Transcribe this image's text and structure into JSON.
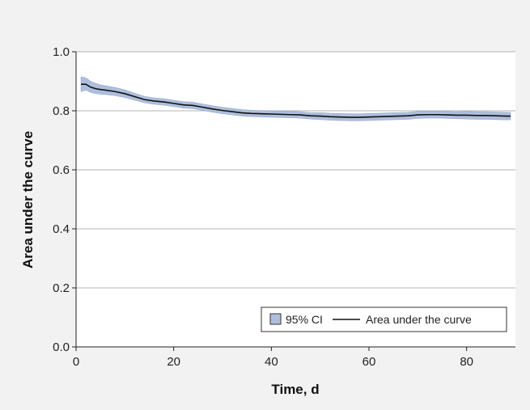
{
  "chart_data": {
    "type": "line",
    "title": "",
    "xlabel": "Time, d",
    "ylabel": "Area under the curve",
    "xlim": [
      0,
      90
    ],
    "ylim": [
      0,
      1.0
    ],
    "x_ticks": [
      0,
      20,
      40,
      60,
      80
    ],
    "y_ticks": [
      0.0,
      0.2,
      0.4,
      0.6,
      0.8,
      1.0
    ],
    "x_tick_labels": [
      "0",
      "20",
      "40",
      "60",
      "80"
    ],
    "y_tick_labels": [
      "0.0",
      "0.2",
      "0.4",
      "0.6",
      "0.8",
      "1.0"
    ],
    "grid": "horizontal",
    "legend_position": "bottom-right",
    "colors": {
      "line": "#111111",
      "band": "#aebfdd",
      "band_edge": "#7b93c2",
      "plot_bg": "#ffffff",
      "page_bg": "#f2f2f2",
      "grid": "#b4b4b4"
    },
    "series": [
      {
        "name": "Area under the curve",
        "kind": "line",
        "x": [
          1,
          2,
          3,
          4,
          5,
          6,
          8,
          10,
          12,
          14,
          16,
          18,
          20,
          22,
          24,
          26,
          28,
          30,
          32,
          34,
          36,
          38,
          40,
          42,
          44,
          46,
          48,
          50,
          52,
          54,
          56,
          58,
          60,
          62,
          64,
          66,
          68,
          70,
          72,
          74,
          76,
          78,
          80,
          82,
          84,
          86,
          88,
          89
        ],
        "y": [
          0.89,
          0.89,
          0.88,
          0.875,
          0.872,
          0.87,
          0.865,
          0.858,
          0.848,
          0.838,
          0.833,
          0.83,
          0.825,
          0.82,
          0.818,
          0.812,
          0.806,
          0.801,
          0.797,
          0.793,
          0.791,
          0.79,
          0.789,
          0.788,
          0.787,
          0.786,
          0.783,
          0.782,
          0.78,
          0.779,
          0.778,
          0.778,
          0.779,
          0.78,
          0.781,
          0.782,
          0.783,
          0.786,
          0.787,
          0.787,
          0.786,
          0.785,
          0.785,
          0.784,
          0.784,
          0.783,
          0.782,
          0.782
        ]
      },
      {
        "name": "95% CI",
        "kind": "band",
        "x": [
          1,
          2,
          3,
          4,
          5,
          6,
          8,
          10,
          12,
          14,
          16,
          18,
          20,
          22,
          24,
          26,
          28,
          30,
          32,
          34,
          36,
          38,
          40,
          42,
          44,
          46,
          48,
          50,
          52,
          54,
          56,
          58,
          60,
          62,
          64,
          66,
          68,
          70,
          72,
          74,
          76,
          78,
          80,
          82,
          84,
          86,
          88,
          89
        ],
        "lower": [
          0.865,
          0.87,
          0.862,
          0.858,
          0.856,
          0.855,
          0.851,
          0.845,
          0.836,
          0.827,
          0.822,
          0.819,
          0.814,
          0.809,
          0.807,
          0.801,
          0.795,
          0.79,
          0.786,
          0.782,
          0.78,
          0.779,
          0.778,
          0.777,
          0.776,
          0.775,
          0.772,
          0.77,
          0.768,
          0.767,
          0.766,
          0.766,
          0.767,
          0.768,
          0.769,
          0.77,
          0.771,
          0.774,
          0.775,
          0.775,
          0.774,
          0.773,
          0.772,
          0.771,
          0.771,
          0.77,
          0.769,
          0.769
        ],
        "upper": [
          0.915,
          0.912,
          0.9,
          0.893,
          0.888,
          0.885,
          0.879,
          0.871,
          0.86,
          0.849,
          0.844,
          0.841,
          0.836,
          0.831,
          0.829,
          0.823,
          0.817,
          0.812,
          0.808,
          0.804,
          0.802,
          0.801,
          0.8,
          0.799,
          0.798,
          0.797,
          0.794,
          0.794,
          0.792,
          0.791,
          0.79,
          0.79,
          0.791,
          0.792,
          0.793,
          0.794,
          0.795,
          0.798,
          0.799,
          0.799,
          0.798,
          0.797,
          0.798,
          0.797,
          0.797,
          0.796,
          0.795,
          0.795
        ]
      }
    ],
    "legend": [
      {
        "label": "95% CI",
        "kind": "band"
      },
      {
        "label": "Area under the curve",
        "kind": "line"
      }
    ]
  }
}
